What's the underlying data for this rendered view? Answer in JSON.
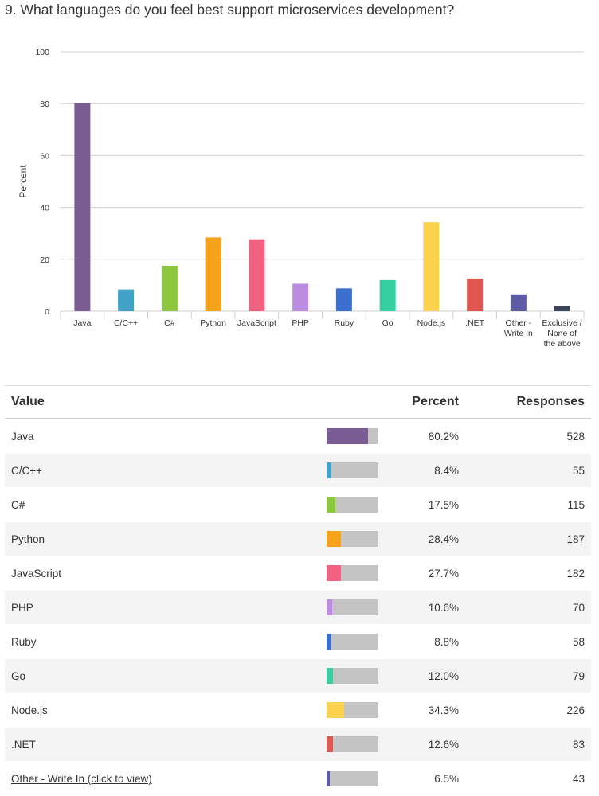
{
  "question": "9. What languages do you feel best support microservices development?",
  "chart_data": {
    "type": "bar",
    "title": "",
    "xlabel": "",
    "ylabel": "Percent",
    "ylim": [
      0,
      100
    ],
    "yticks": [
      0,
      20,
      40,
      60,
      80,
      100
    ],
    "grid": true,
    "categories": [
      [
        "Java"
      ],
      [
        "C/C++"
      ],
      [
        "C#"
      ],
      [
        "Python"
      ],
      [
        "JavaScript"
      ],
      [
        "PHP"
      ],
      [
        "Ruby"
      ],
      [
        "Go"
      ],
      [
        "Node.js"
      ],
      [
        ".NET"
      ],
      [
        "Other -",
        "Write In"
      ],
      [
        "Exclusive /",
        "None of",
        "the above"
      ]
    ],
    "values": [
      80.2,
      8.4,
      17.5,
      28.4,
      27.7,
      10.6,
      8.8,
      12.0,
      34.3,
      12.6,
      6.5,
      2.0
    ],
    "colors": [
      "#7b5c92",
      "#41a2c8",
      "#8dc63f",
      "#f5a31a",
      "#f06182",
      "#bb8ce0",
      "#3b6fce",
      "#36cfa1",
      "#fbd24e",
      "#e0574f",
      "#5e5ca5",
      "#3a4459"
    ]
  },
  "table": {
    "headers": {
      "value": "Value",
      "percent": "Percent",
      "responses": "Responses"
    },
    "rows": [
      {
        "value": "Java",
        "percent": "80.2%",
        "responses": "528",
        "fraction": 0.802,
        "color": "#7b5c92"
      },
      {
        "value": "C/C++",
        "percent": "8.4%",
        "responses": "55",
        "fraction": 0.084,
        "color": "#41a2c8"
      },
      {
        "value": "C#",
        "percent": "17.5%",
        "responses": "115",
        "fraction": 0.175,
        "color": "#8dc63f"
      },
      {
        "value": "Python",
        "percent": "28.4%",
        "responses": "187",
        "fraction": 0.284,
        "color": "#f5a31a"
      },
      {
        "value": "JavaScript",
        "percent": "27.7%",
        "responses": "182",
        "fraction": 0.277,
        "color": "#f06182"
      },
      {
        "value": "PHP",
        "percent": "10.6%",
        "responses": "70",
        "fraction": 0.106,
        "color": "#bb8ce0"
      },
      {
        "value": "Ruby",
        "percent": "8.8%",
        "responses": "58",
        "fraction": 0.088,
        "color": "#3b6fce"
      },
      {
        "value": "Go",
        "percent": "12.0%",
        "responses": "79",
        "fraction": 0.12,
        "color": "#36cfa1"
      },
      {
        "value": "Node.js",
        "percent": "34.3%",
        "responses": "226",
        "fraction": 0.343,
        "color": "#fbd24e"
      },
      {
        "value": ".NET",
        "percent": "12.6%",
        "responses": "83",
        "fraction": 0.126,
        "color": "#e0574f"
      },
      {
        "value": "Other - Write In (click to view)",
        "percent": "6.5%",
        "responses": "43",
        "fraction": 0.065,
        "color": "#5e5ca5",
        "link": true
      }
    ]
  }
}
